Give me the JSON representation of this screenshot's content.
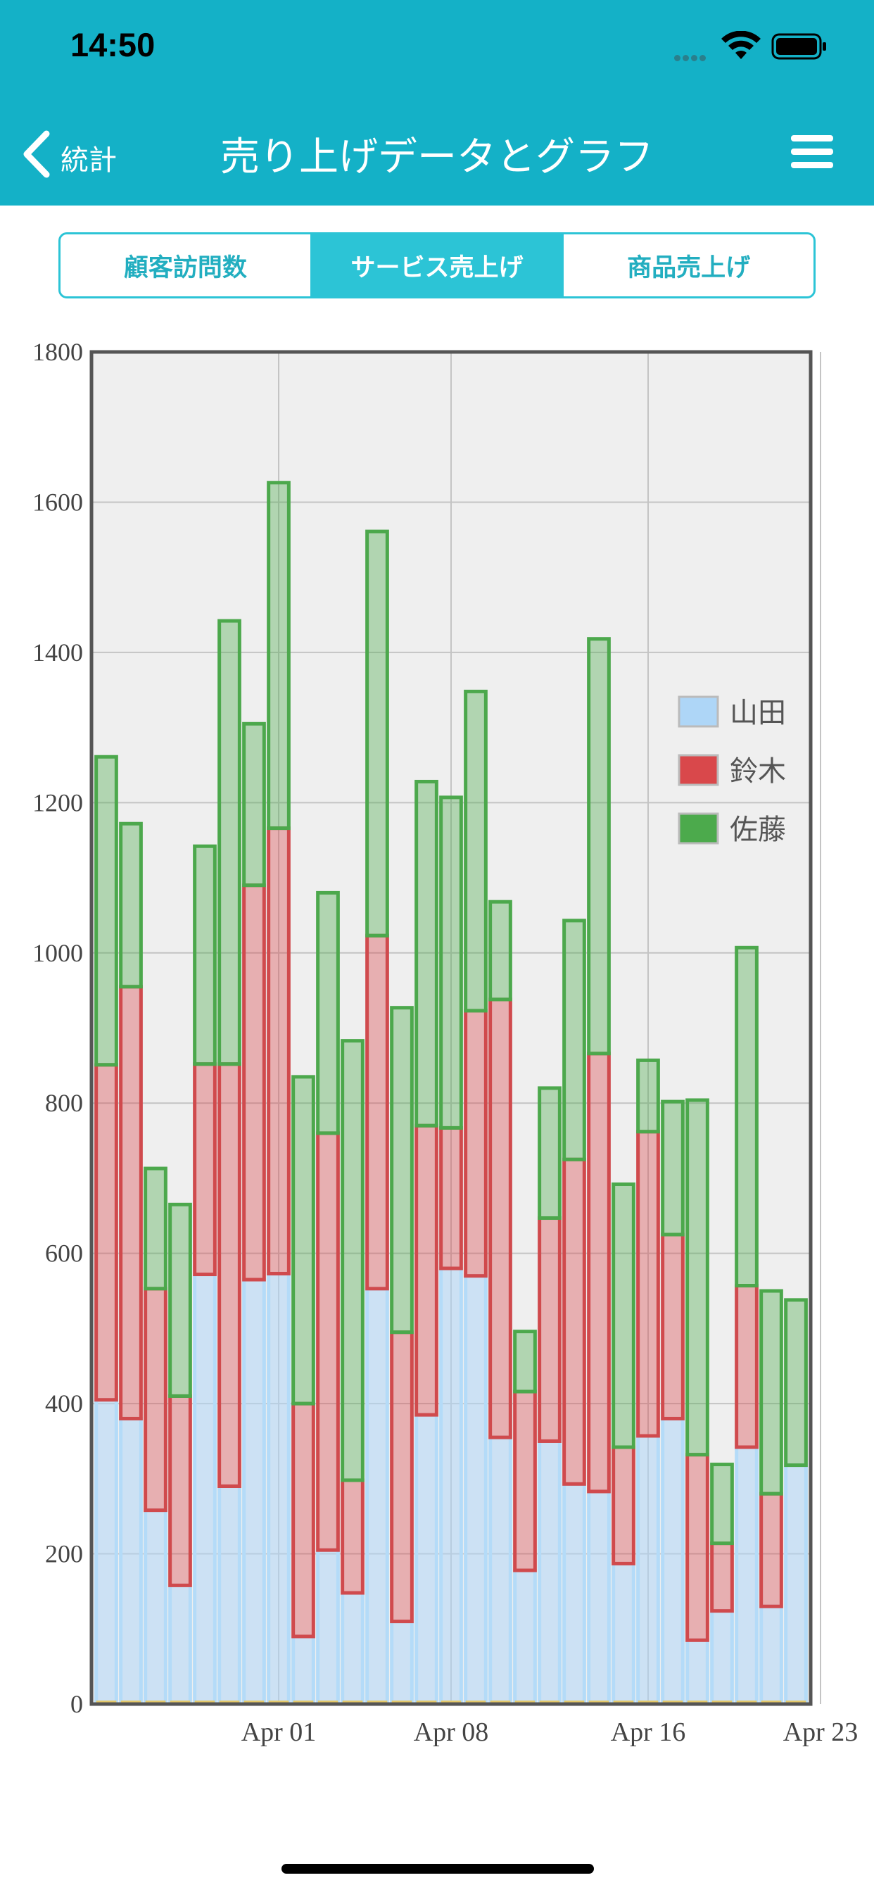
{
  "status_bar": {
    "time": "14:50"
  },
  "nav": {
    "back_label": "統計",
    "title": "売り上げデータとグラフ"
  },
  "tabs": [
    {
      "label": "顧客訪問数",
      "active": false
    },
    {
      "label": "サービス売上げ",
      "active": true
    },
    {
      "label": "商品売上げ",
      "active": false
    }
  ],
  "colors": {
    "header": "#14b1c7",
    "accent": "#2cc4d6",
    "yamada": "#aed6f7",
    "suzuki": "#d9484b",
    "sato": "#4caa4c"
  },
  "chart_data": {
    "type": "bar",
    "stacked": true,
    "x_tick_labels": [
      "Apr 01",
      "Apr 08",
      "Apr 16",
      "Apr 23"
    ],
    "x_tick_positions": [
      7,
      14,
      22,
      29
    ],
    "ylim": [
      0,
      1800
    ],
    "yticks": [
      0,
      200,
      400,
      600,
      800,
      1000,
      1200,
      1400,
      1600,
      1800
    ],
    "grid": true,
    "legend_position": "top-right",
    "series": [
      {
        "name": "山田",
        "color": "#aed6f7",
        "values": [
          405,
          380,
          258,
          158,
          572,
          290,
          565,
          573,
          90,
          205,
          148,
          553,
          110,
          385,
          580,
          570,
          355,
          178,
          350,
          293,
          283,
          187,
          357,
          380,
          85,
          124,
          342,
          130,
          318
        ]
      },
      {
        "name": "鈴木",
        "color": "#d9484b",
        "values": [
          446,
          575,
          295,
          252,
          280,
          562,
          525,
          593,
          310,
          555,
          150,
          470,
          385,
          385,
          187,
          353,
          583,
          238,
          297,
          432,
          583,
          155,
          405,
          245,
          247,
          90,
          215,
          150,
          0
        ]
      },
      {
        "name": "佐藤",
        "color": "#4caa4c",
        "values": [
          410,
          217,
          160,
          255,
          290,
          590,
          215,
          460,
          435,
          320,
          585,
          538,
          432,
          458,
          440,
          425,
          130,
          80,
          173,
          318,
          552,
          350,
          95,
          177,
          472,
          105,
          450,
          270,
          220
        ]
      }
    ]
  }
}
